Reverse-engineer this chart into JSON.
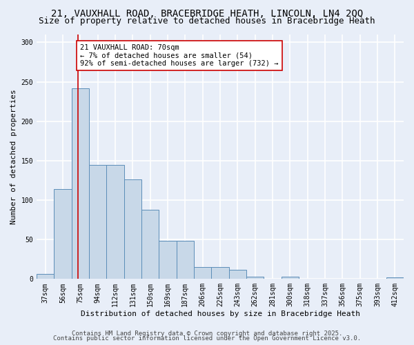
{
  "title_line1": "21, VAUXHALL ROAD, BRACEBRIDGE HEATH, LINCOLN, LN4 2QQ",
  "title_line2": "Size of property relative to detached houses in Bracebridge Heath",
  "xlabel": "Distribution of detached houses by size in Bracebridge Heath",
  "ylabel": "Number of detached properties",
  "categories": [
    "37sqm",
    "56sqm",
    "75sqm",
    "94sqm",
    "112sqm",
    "131sqm",
    "150sqm",
    "169sqm",
    "187sqm",
    "206sqm",
    "225sqm",
    "243sqm",
    "262sqm",
    "281sqm",
    "300sqm",
    "318sqm",
    "337sqm",
    "356sqm",
    "375sqm",
    "393sqm",
    "412sqm"
  ],
  "values": [
    6,
    114,
    242,
    145,
    145,
    126,
    88,
    48,
    48,
    15,
    15,
    12,
    3,
    0,
    3,
    0,
    0,
    0,
    0,
    0,
    2
  ],
  "bar_color": "#c8d8e8",
  "bar_edge_color": "#5b8db8",
  "background_color": "#e8eef8",
  "grid_color": "#ffffff",
  "annotation_text": "21 VAUXHALL ROAD: 70sqm\n← 7% of detached houses are smaller (54)\n92% of semi-detached houses are larger (732) →",
  "vline_color": "#cc0000",
  "annotation_box_color": "#ffffff",
  "annotation_box_edge": "#cc0000",
  "ylim": [
    0,
    310
  ],
  "yticks": [
    0,
    50,
    100,
    150,
    200,
    250,
    300
  ],
  "footer_line1": "Contains HM Land Registry data © Crown copyright and database right 2025.",
  "footer_line2": "Contains public sector information licensed under the Open Government Licence v3.0.",
  "title_fontsize": 10,
  "subtitle_fontsize": 9,
  "tick_fontsize": 7,
  "ylabel_fontsize": 8,
  "xlabel_fontsize": 8,
  "annotation_fontsize": 7.5,
  "footer_fontsize": 6.5
}
